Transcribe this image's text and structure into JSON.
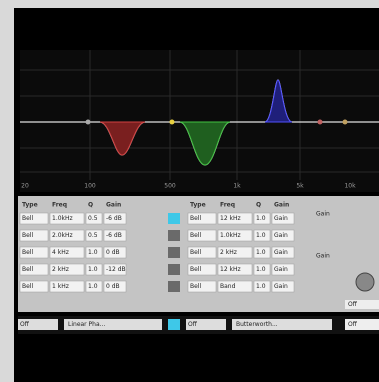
{
  "graph": {
    "x_labels": [
      "20",
      "100",
      "500",
      "1k",
      "5k",
      "10k"
    ]
  },
  "left_table": {
    "header": [
      "Type",
      "Freq",
      "Q",
      "Gain"
    ],
    "rows": [
      [
        "Bell",
        "1.0kHz",
        "0.5",
        "-6 dB"
      ],
      [
        "Bell",
        "2.0kHz",
        "0.5",
        "-6 dB"
      ],
      [
        "Bell",
        "4 kHz",
        "1.0",
        "0 dB"
      ],
      [
        "Bell",
        "2 kHz",
        "1.0",
        "-12 dB"
      ],
      [
        "Bell",
        "1 kHz",
        "1.0",
        "0 dB"
      ]
    ]
  },
  "right_table": {
    "header": [
      "Type",
      "Freq",
      "Q",
      "Gain"
    ],
    "rows": [
      [
        "Bell",
        "12 kHz",
        "1.0",
        "Gain"
      ],
      [
        "Bell",
        "1.0kHz",
        "1.0",
        "Gain"
      ],
      [
        "Bell",
        "2 kHz",
        "1.0",
        "Gain"
      ],
      [
        "Bell",
        "12 kHz",
        "1.0",
        "Gain"
      ],
      [
        "Bell",
        "Band",
        "1.0",
        "Gain"
      ]
    ]
  },
  "side": {
    "label_top": "Gain",
    "label_mid": "Gain",
    "field_1": "Off",
    "field_2": "Off"
  },
  "bottom": {
    "left_value": "Off",
    "left_mode": "Linear Pha...",
    "right_value": "Off",
    "right_mode": "Butterworth..."
  }
}
